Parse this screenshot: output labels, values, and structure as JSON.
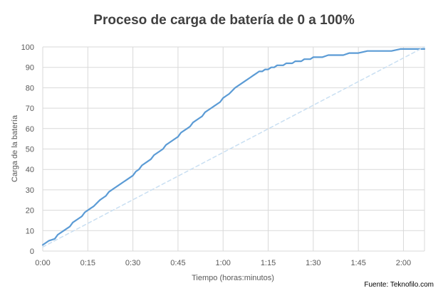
{
  "chart_data": {
    "type": "line",
    "title": "Proceso de carga de batería de 0 a 100%",
    "xlabel": "Tiempo (horas:minutos)",
    "ylabel": "Carga de la batería",
    "source": "Fuente: Teknofilo.com",
    "x_tick_labels": [
      "0:00",
      "0:15",
      "0:30",
      "0:45",
      "1:00",
      "1:15",
      "1:30",
      "1:45",
      "2:00"
    ],
    "x_ticks_minutes": [
      0,
      15,
      30,
      45,
      60,
      75,
      90,
      105,
      120
    ],
    "y_ticks": [
      0,
      10,
      20,
      30,
      40,
      50,
      60,
      70,
      80,
      90,
      100
    ],
    "xlim_minutes": [
      0,
      127
    ],
    "ylim": [
      0,
      100
    ],
    "grid": true,
    "series": [
      {
        "style": "solid",
        "color": "#5b9bd5",
        "x_minutes": [
          0,
          2,
          4,
          5,
          7,
          9,
          10,
          12,
          13,
          14,
          16,
          17,
          19,
          20,
          21,
          22,
          24,
          25,
          27,
          28,
          30,
          31,
          32,
          33,
          35,
          36,
          37,
          39,
          40,
          41,
          42,
          44,
          45,
          46,
          48,
          49,
          50,
          52,
          53,
          54,
          56,
          57,
          59,
          60,
          61,
          62,
          64,
          66,
          67,
          69,
          70,
          71,
          72,
          73,
          74,
          75,
          76,
          77,
          78,
          79,
          80,
          81,
          82,
          83,
          84,
          86,
          87,
          88,
          89,
          90,
          91,
          92,
          93,
          95,
          96,
          98,
          100,
          102,
          104,
          105,
          108,
          110,
          112,
          116,
          119,
          122,
          125,
          127
        ],
        "y": [
          3,
          5,
          6,
          8,
          10,
          12,
          14,
          16,
          17,
          19,
          21,
          22,
          25,
          26,
          27,
          29,
          31,
          32,
          34,
          35,
          37,
          39,
          40,
          42,
          44,
          45,
          47,
          49,
          50,
          52,
          53,
          55,
          56,
          58,
          60,
          61,
          63,
          65,
          66,
          68,
          70,
          71,
          73,
          75,
          76,
          77,
          80,
          82,
          83,
          85,
          86,
          87,
          88,
          88,
          89,
          89,
          90,
          90,
          91,
          91,
          91,
          92,
          92,
          92,
          93,
          93,
          94,
          94,
          94,
          95,
          95,
          95,
          95,
          96,
          96,
          96,
          96,
          97,
          97,
          97,
          98,
          98,
          98,
          98,
          99,
          99,
          99,
          99
        ]
      },
      {
        "style": "dashed",
        "color": "#c9dff2",
        "x_minutes": [
          0,
          127
        ],
        "y": [
          2,
          100
        ]
      }
    ]
  }
}
